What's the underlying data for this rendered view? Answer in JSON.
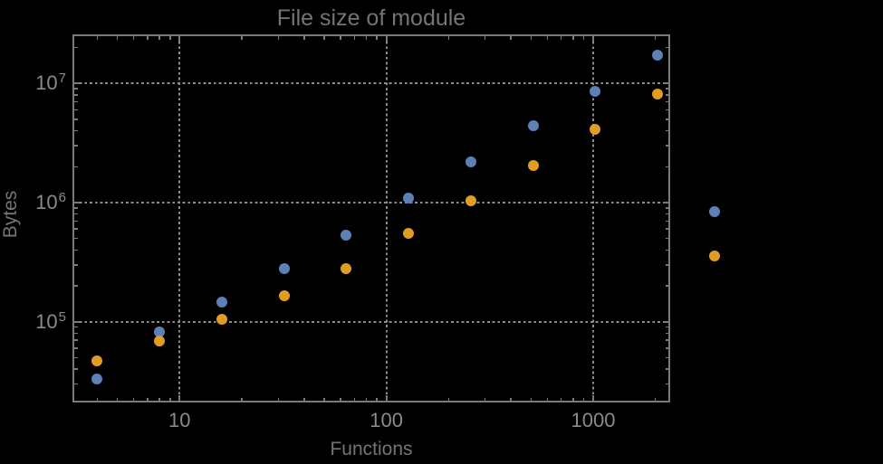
{
  "title": "File size of module",
  "x_axis": {
    "label": "Functions",
    "ticks": [
      {
        "value": 10,
        "label": "10"
      },
      {
        "value": 100,
        "label": "100"
      },
      {
        "value": 1000,
        "label": "1000"
      }
    ]
  },
  "y_axis": {
    "label": "Bytes",
    "ticks": [
      {
        "value": 100000,
        "base": "10",
        "exp": "5"
      },
      {
        "value": 1000000,
        "base": "10",
        "exp": "6"
      },
      {
        "value": 10000000,
        "base": "10",
        "exp": "7"
      }
    ]
  },
  "colors": {
    "background": "#000000",
    "frame": "#7a7a7a",
    "grid": "#8c8c8c",
    "tick_label_text": "#8a8a8a",
    "label_text": "#747474",
    "series1_blue": "#5e81b5",
    "series2_orange": "#e19c24"
  },
  "chart_data": {
    "type": "scatter",
    "x_scale": "log",
    "y_scale": "log",
    "title": "File size of module",
    "xlabel": "Functions",
    "ylabel": "Bytes",
    "xlim": [
      3.1,
      2340
    ],
    "ylim": [
      21300,
      26100000
    ],
    "grid": "major gridlines, dotted",
    "legend": "none",
    "x": [
      4,
      8,
      16,
      32,
      64,
      128,
      256,
      512,
      1024,
      2048,
      3870
    ],
    "series": [
      {
        "name": "series-1-blue",
        "color": "#5e81b5",
        "values": [
          33000,
          82000,
          147000,
          281000,
          537000,
          1090000,
          2180000,
          4380000,
          8600000,
          17300000,
          832000
        ]
      },
      {
        "name": "series-2-orange",
        "color": "#e19c24",
        "values": [
          47000,
          69000,
          104000,
          164000,
          281000,
          550000,
          1030000,
          2040000,
          4080000,
          8200000,
          357000
        ]
      }
    ],
    "note_visual": "last x pair (x=3870) is drawn outside the right frame edge (unclipped)"
  }
}
